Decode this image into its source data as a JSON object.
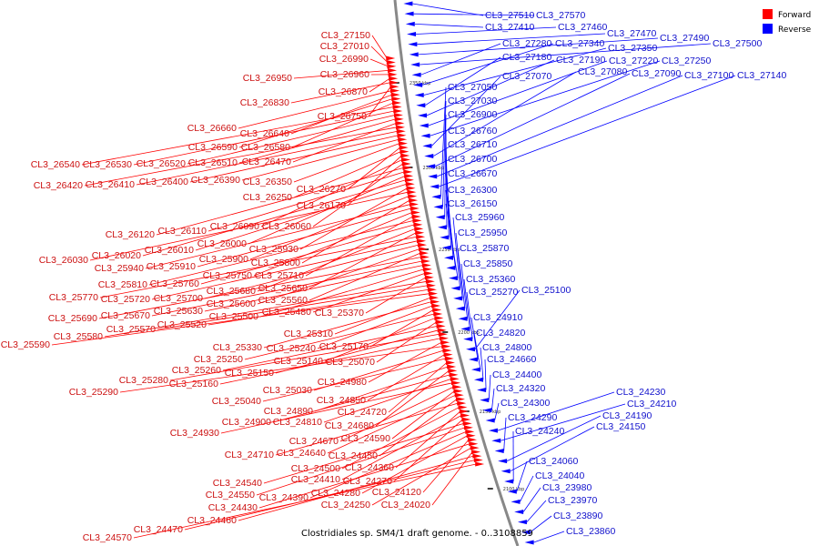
{
  "colors": {
    "forward": "#ff0000",
    "reverse": "#0000ff",
    "backbone": "#888888"
  },
  "legend": [
    {
      "key": "forward",
      "label": "Forward"
    },
    {
      "key": "reverse",
      "label": "Reverse"
    }
  ],
  "caption": "Clostridiales sp. SM4/1 draft genome. - 0..3108859",
  "ticks": [
    "2350 kbp",
    "2300 kbp",
    "2250 kbp",
    "2200 kbp",
    "2150 kbp",
    "2100 kbp"
  ],
  "forward_genes": [
    "CL3_27150",
    "CL3_27010",
    "CL3_26990",
    "CL3_26950",
    "CL3_26960",
    "CL3_26870",
    "CL3_26830",
    "CL3_26750",
    "CL3_26660",
    "CL3_26640",
    "CL3_26590",
    "CL3_26580",
    "CL3_26540",
    "CL3_26530",
    "CL3_26520",
    "CL3_26510",
    "CL3_26470",
    "CL3_26420",
    "CL3_26410",
    "CL3_26400",
    "CL3_26390",
    "CL3_26350",
    "CL3_26270",
    "CL3_26250",
    "CL3_26170",
    "CL3_26090",
    "CL3_26060",
    "CL3_26120",
    "CL3_26110",
    "CL3_26000",
    "CL3_26020",
    "CL3_26010",
    "CL3_25930",
    "CL3_26030",
    "CL3_25900",
    "CL3_25800",
    "CL3_25940",
    "CL3_25910",
    "CL3_25750",
    "CL3_25710",
    "CL3_25810",
    "CL3_25760",
    "CL3_25680",
    "CL3_25650",
    "CL3_25770",
    "CL3_25720",
    "CL3_25700",
    "CL3_25600",
    "CL3_25560",
    "CL3_25690",
    "CL3_25670",
    "CL3_25630",
    "CL3_25500",
    "CL3_25480",
    "CL3_25370",
    "CL3_25580",
    "CL3_25570",
    "CL3_25520",
    "CL3_25590",
    "CL3_25310",
    "CL3_25330",
    "CL3_25240",
    "CL3_25170",
    "CL3_25250",
    "CL3_25140",
    "CL3_25070",
    "CL3_25260",
    "CL3_25150",
    "CL3_25280",
    "CL3_25160",
    "CL3_24980",
    "CL3_25290",
    "CL3_25030",
    "CL3_24850",
    "CL3_25040",
    "CL3_24720",
    "CL3_24890",
    "CL3_24680",
    "CL3_24900",
    "CL3_24810",
    "CL3_24930",
    "CL3_24670",
    "CL3_24590",
    "CL3_24640",
    "CL3_24450",
    "CL3_24710",
    "CL3_24500",
    "CL3_24360",
    "CL3_24410",
    "CL3_24270",
    "CL3_24540",
    "CL3_24550",
    "CL3_24390",
    "CL3_24280",
    "CL3_24120",
    "CL3_24430",
    "CL3_24250",
    "CL3_24020",
    "CL3_24460",
    "CL3_24470",
    "CL3_24570"
  ],
  "reverse_genes": [
    "CL3_27510",
    "CL3_27570",
    "CL3_27410",
    "CL3_27460",
    "CL3_27470",
    "CL3_27490",
    "CL3_27500",
    "CL3_27280",
    "CL3_27340",
    "CL3_27350",
    "CL3_27180",
    "CL3_27190",
    "CL3_27220",
    "CL3_27250",
    "CL3_27070",
    "CL3_27080",
    "CL3_27090",
    "CL3_27100",
    "CL3_27140",
    "CL3_27050",
    "CL3_27030",
    "CL3_26900",
    "CL3_26760",
    "CL3_26710",
    "CL3_26700",
    "CL3_26670",
    "CL3_26300",
    "CL3_26150",
    "CL3_25960",
    "CL3_25950",
    "CL3_25870",
    "CL3_25850",
    "CL3_25360",
    "CL3_25270",
    "CL3_25100",
    "CL3_24910",
    "CL3_24820",
    "CL3_24800",
    "CL3_24660",
    "CL3_24400",
    "CL3_24320",
    "CL3_24300",
    "CL3_24230",
    "CL3_24210",
    "CL3_24290",
    "CL3_24190",
    "CL3_24150",
    "CL3_24240",
    "CL3_24060",
    "CL3_24040",
    "CL3_23980",
    "CL3_23970",
    "CL3_23890",
    "CL3_23860"
  ]
}
